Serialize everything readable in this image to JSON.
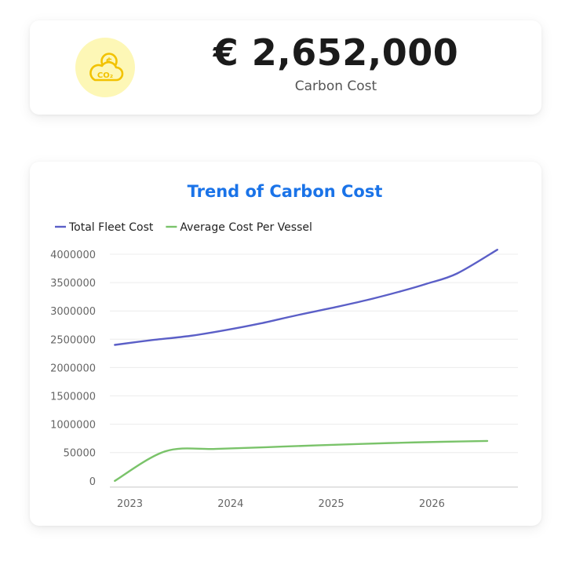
{
  "kpi": {
    "value": "€ 2,652,000",
    "label": "Carbon Cost",
    "icon": "coin-cloud-co2-icon",
    "icon_bg_color": "#fdf7b6",
    "icon_color": "#f5c400"
  },
  "chart_data": {
    "type": "line",
    "title": "Trend of Carbon Cost",
    "xlabel": "",
    "ylabel": "",
    "x_ticks": [
      "2023",
      "2024",
      "2025",
      "2026"
    ],
    "y_ticks": [
      "0",
      "50000",
      "1000000",
      "1500000",
      "2000000",
      "2500000",
      "3000000",
      "3500000",
      "4000000"
    ],
    "legend_position": "top-left",
    "grid": true,
    "series": [
      {
        "name": "Total Fleet Cost",
        "color": "#5b5fc7",
        "points": [
          {
            "x": 2022.85,
            "y": 2400000
          },
          {
            "x": 2023.2,
            "y": 2480000
          },
          {
            "x": 2023.6,
            "y": 2560000
          },
          {
            "x": 2023.95,
            "y": 2660000
          },
          {
            "x": 2024.3,
            "y": 2780000
          },
          {
            "x": 2024.65,
            "y": 2920000
          },
          {
            "x": 2025.0,
            "y": 3050000
          },
          {
            "x": 2025.35,
            "y": 3190000
          },
          {
            "x": 2025.7,
            "y": 3350000
          },
          {
            "x": 2025.95,
            "y": 3480000
          },
          {
            "x": 2026.25,
            "y": 3660000
          },
          {
            "x": 2026.65,
            "y": 4080000
          }
        ]
      },
      {
        "name": "Average Cost Per Vessel",
        "color": "#7ac36a",
        "points": [
          {
            "x": 2022.85,
            "y": 0
          },
          {
            "x": 2023.35,
            "y": 90000
          },
          {
            "x": 2023.85,
            "y": 170000
          },
          {
            "x": 2024.35,
            "y": 230000
          },
          {
            "x": 2024.85,
            "y": 290000
          },
          {
            "x": 2025.3,
            "y": 340000
          },
          {
            "x": 2025.7,
            "y": 380000
          },
          {
            "x": 2026.1,
            "y": 410000
          },
          {
            "x": 2026.55,
            "y": 440000
          }
        ]
      }
    ]
  }
}
